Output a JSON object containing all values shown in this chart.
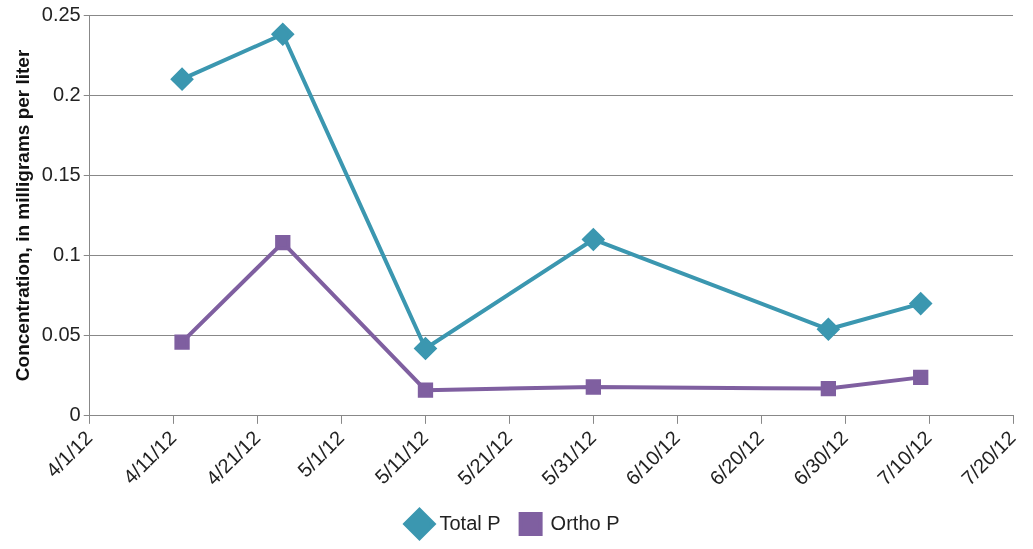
{
  "chart_data": {
    "type": "line",
    "ylabel": "Concentration, in milligrams per liter",
    "x": [
      "--04-12",
      "--04-24",
      "--05-11",
      "--05-31",
      "--06-28",
      "--07-09"
    ],
    "series": [
      {
        "name": "Total P",
        "color": "#3b97b0",
        "marker": "diamond",
        "values": [
          0.21,
          0.238,
          0.042,
          0.11,
          0.054,
          0.07
        ]
      },
      {
        "name": "Ortho P",
        "color": "#7f5fa0",
        "marker": "square",
        "values": [
          0.046,
          0.108,
          0.016,
          0.018,
          0.017,
          0.024
        ]
      }
    ],
    "xlim": [
      "--04-01",
      "--07-20"
    ],
    "xticks": [
      {
        "value": "--04-01",
        "label": "4/1/12"
      },
      {
        "value": "--04-11",
        "label": "4/11/12"
      },
      {
        "value": "--04-21",
        "label": "4/21/12"
      },
      {
        "value": "--05-01",
        "label": "5/1/12"
      },
      {
        "value": "--05-11",
        "label": "5/11/12"
      },
      {
        "value": "--05-21",
        "label": "5/21/12"
      },
      {
        "value": "--05-31",
        "label": "5/31/12"
      },
      {
        "value": "--06-10",
        "label": "6/10/12"
      },
      {
        "value": "--06-20",
        "label": "6/20/12"
      },
      {
        "value": "--06-30",
        "label": "6/30/12"
      },
      {
        "value": "--07-10",
        "label": "7/10/12"
      },
      {
        "value": "--07-20",
        "label": "7/20/12"
      }
    ],
    "ylim": [
      0,
      0.25
    ],
    "yticks": [
      0,
      0.05,
      0.1,
      0.15,
      0.2,
      0.25
    ],
    "grid": "y",
    "legend": "bottom",
    "line_style": "solid"
  }
}
